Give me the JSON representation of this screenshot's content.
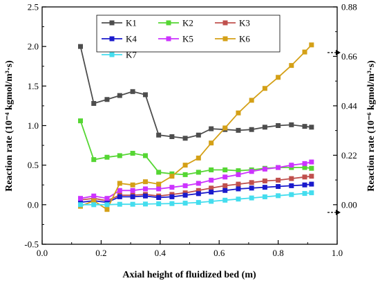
{
  "chart_data": {
    "type": "line",
    "xlabel": "Axial height of fluidized bed (m)",
    "ylabel": "Reaction rate (10⁻⁴ kgmol/m³·s)",
    "y2label": "Reaction rate (10⁻⁶ kgmol/m³·s)",
    "xlim": [
      0.0,
      1.0
    ],
    "ylim": [
      -0.5,
      2.5
    ],
    "y2lim": [
      -0.176,
      0.88
    ],
    "x_ticks": [
      "0.0",
      "0.2",
      "0.4",
      "0.6",
      "0.8",
      "1.0"
    ],
    "y_ticks": [
      "-0.5",
      "0.0",
      "0.5",
      "1.0",
      "1.5",
      "2.0",
      "2.5"
    ],
    "y2_ticks": [
      "0.00",
      "0.22",
      "0.44",
      "0.66",
      "0.88"
    ],
    "grid": false,
    "legend_position": "top-left",
    "x": [
      0.13,
      0.175,
      0.22,
      0.263,
      0.307,
      0.35,
      0.395,
      0.44,
      0.485,
      0.53,
      0.573,
      0.62,
      0.665,
      0.71,
      0.755,
      0.8,
      0.845,
      0.89,
      0.913
    ],
    "series": [
      {
        "name": "K1",
        "axis": "left",
        "color": "#4d4d4d",
        "marker": "square",
        "values": [
          2.0,
          1.28,
          1.33,
          1.38,
          1.43,
          1.39,
          0.88,
          0.86,
          0.84,
          0.88,
          0.96,
          0.95,
          0.94,
          0.95,
          0.98,
          1.0,
          1.01,
          0.99,
          0.98
        ]
      },
      {
        "name": "K2",
        "axis": "left",
        "color": "#55d633",
        "marker": "square",
        "values": [
          1.06,
          0.57,
          0.6,
          0.62,
          0.65,
          0.62,
          0.41,
          0.39,
          0.38,
          0.41,
          0.44,
          0.44,
          0.43,
          0.44,
          0.46,
          0.47,
          0.47,
          0.47,
          0.46
        ]
      },
      {
        "name": "K3",
        "axis": "left",
        "color": "#c0504d",
        "marker": "square",
        "values": [
          0.06,
          0.08,
          0.05,
          0.12,
          0.12,
          0.13,
          0.11,
          0.13,
          0.15,
          0.18,
          0.21,
          0.24,
          0.26,
          0.28,
          0.3,
          0.31,
          0.33,
          0.35,
          0.36
        ]
      },
      {
        "name": "K4",
        "axis": "left",
        "color": "#1a1acc",
        "marker": "square",
        "values": [
          0.03,
          0.05,
          0.03,
          0.1,
          0.1,
          0.11,
          0.09,
          0.1,
          0.12,
          0.14,
          0.16,
          0.18,
          0.2,
          0.21,
          0.22,
          0.23,
          0.24,
          0.25,
          0.26
        ]
      },
      {
        "name": "K5",
        "axis": "left",
        "color": "#cc33ff",
        "marker": "square",
        "values": [
          0.08,
          0.11,
          0.08,
          0.18,
          0.18,
          0.2,
          0.2,
          0.22,
          0.24,
          0.27,
          0.31,
          0.35,
          0.38,
          0.42,
          0.45,
          0.47,
          0.5,
          0.52,
          0.54
        ]
      },
      {
        "name": "K6",
        "axis": "left",
        "color": "#d4a017",
        "marker": "square",
        "values": [
          -0.02,
          0.05,
          -0.06,
          0.27,
          0.25,
          0.29,
          0.26,
          0.36,
          0.5,
          0.59,
          0.78,
          0.97,
          1.16,
          1.32,
          1.47,
          1.61,
          1.76,
          1.93,
          2.02
        ]
      },
      {
        "name": "K7",
        "axis": "right",
        "color": "#44ddee",
        "marker": "square",
        "values": [
          0.0,
          0.0,
          0.0,
          0.002,
          0.002,
          0.003,
          0.004,
          0.005,
          0.007,
          0.01,
          0.015,
          0.02,
          0.025,
          0.03,
          0.035,
          0.04,
          0.045,
          0.05,
          0.053
        ]
      }
    ]
  }
}
